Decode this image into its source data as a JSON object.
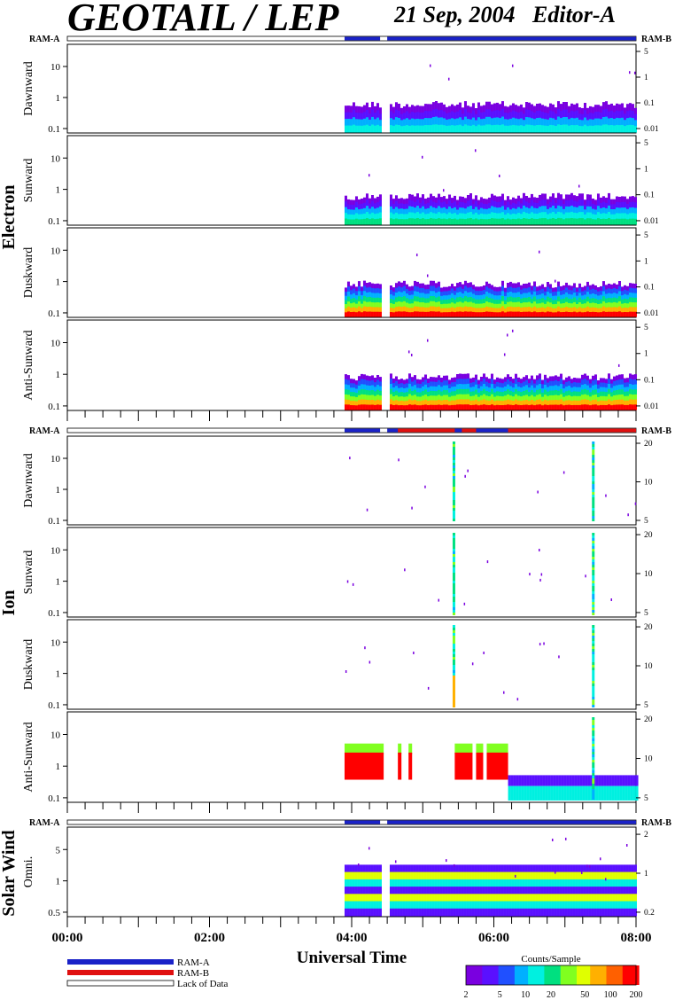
{
  "header": {
    "title": "GEOTAIL / LEP",
    "date": "21 Sep, 2004",
    "editor": "Editor-A"
  },
  "colors": {
    "ram_a": "#1a22c8",
    "ram_b": "#e01010",
    "spectrogram_scale": [
      "#7a00e0",
      "#5a10ff",
      "#2050ff",
      "#00b0ff",
      "#00f0e0",
      "#00e080",
      "#80ff20",
      "#e0ff00",
      "#ffb000",
      "#ff6000",
      "#ff0000"
    ]
  },
  "chart_data": {
    "type": "heatmap",
    "xlabel": "Universal Time",
    "x_ticks": [
      "00:00",
      "02:00",
      "04:00",
      "06:00",
      "08:00"
    ],
    "xlim_hours": [
      0,
      8
    ],
    "data_start_hour": 3.9,
    "gaps_hours": [
      [
        4.4,
        4.5
      ]
    ],
    "colorbar": {
      "title": "Counts/Sample",
      "ticks": [
        "2",
        "5",
        "10",
        "20",
        "50",
        "100",
        "200"
      ]
    },
    "legend": [
      {
        "key": "ram_a",
        "label": "RAM-A"
      },
      {
        "key": "ram_b",
        "label": "RAM-B"
      },
      {
        "key": "nodata",
        "label": "Lack of Data"
      }
    ],
    "groups": [
      {
        "name": "Electron",
        "ram_left": "RAM-A",
        "ram_right": "RAM-B",
        "panels": [
          {
            "label": "Dawnward",
            "left_ticks": [
              "10",
              "1",
              "0.1"
            ],
            "right_ticks": [
              "5",
              "1",
              "0.1",
              "0.01"
            ],
            "intensity": "low"
          },
          {
            "label": "Sunward",
            "left_ticks": [
              "10",
              "1",
              "0.1"
            ],
            "right_ticks": [
              "5",
              "1",
              "0.1",
              "0.01"
            ],
            "intensity": "med"
          },
          {
            "label": "Duskward",
            "left_ticks": [
              "10",
              "1",
              "0.1"
            ],
            "right_ticks": [
              "5",
              "1",
              "0.1",
              "0.01"
            ],
            "intensity": "high"
          },
          {
            "label": "Anti-Sunward",
            "left_ticks": [
              "10",
              "1",
              "0.1"
            ],
            "right_ticks": [
              "5",
              "1",
              "0.1",
              "0.01"
            ],
            "intensity": "high"
          }
        ]
      },
      {
        "name": "Ion",
        "ram_left": "RAM-A",
        "ram_right": "RAM-B",
        "panels": [
          {
            "label": "Dawnward",
            "left_ticks": [
              "10",
              "1",
              "0.1"
            ],
            "right_ticks": [
              "20",
              "10",
              "5"
            ],
            "intensity": "sparse"
          },
          {
            "label": "Sunward",
            "left_ticks": [
              "10",
              "1",
              "0.1"
            ],
            "right_ticks": [
              "20",
              "10",
              "5"
            ],
            "intensity": "sparse"
          },
          {
            "label": "Duskward",
            "left_ticks": [
              "10",
              "1",
              "0.1"
            ],
            "right_ticks": [
              "20",
              "10",
              "5"
            ],
            "intensity": "sparse2"
          },
          {
            "label": "Anti-Sunward",
            "left_ticks": [
              "10",
              "1",
              "0.1"
            ],
            "right_ticks": [
              "20",
              "10",
              "5"
            ],
            "intensity": "ion_antisun"
          }
        ]
      },
      {
        "name": "Solar Wind",
        "ram_left": "RAM-A",
        "ram_right": "RAM-B",
        "panels": [
          {
            "label": "Omni.",
            "left_ticks": [
              "5",
              "1",
              "0.5"
            ],
            "right_ticks": [
              "2",
              "1",
              "0.2"
            ],
            "intensity": "sw"
          }
        ]
      }
    ]
  }
}
